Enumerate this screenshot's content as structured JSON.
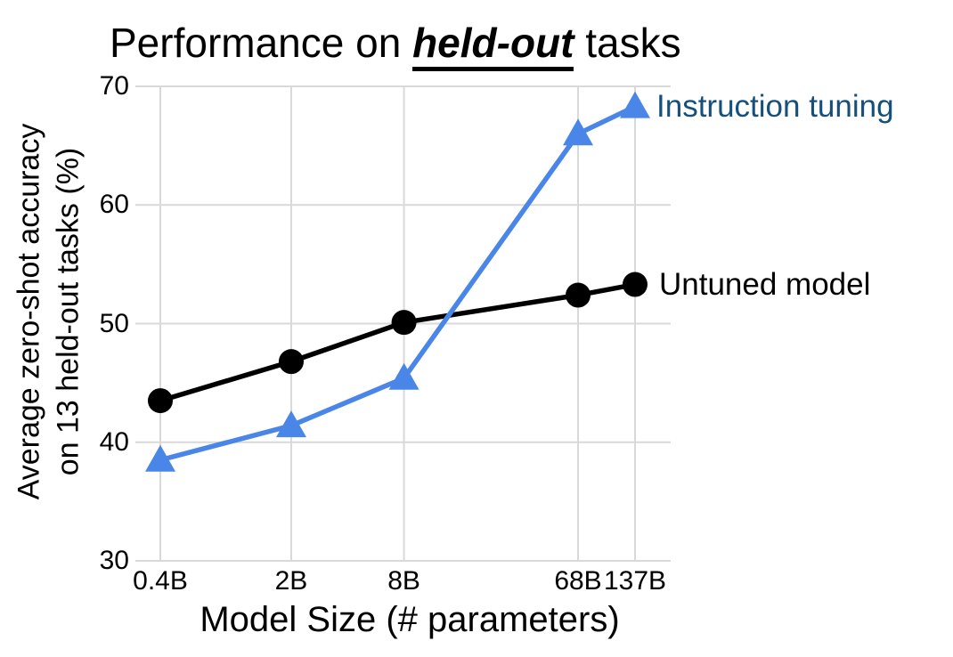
{
  "header": {
    "title_prefix": "Performance on ",
    "title_emphasis": "held-out",
    "title_suffix": " tasks"
  },
  "colors": {
    "background": "#ffffff",
    "grid": "#d9d9d9",
    "untuned_line": "#000000",
    "instruction_line": "#4a86e8",
    "instruction_label_text": "#15507d",
    "untuned_label_text": "#000000",
    "text": "#000000"
  },
  "chart_data": {
    "type": "line",
    "title": "Performance on held-out tasks",
    "title_emphasis_word": "held-out",
    "xlabel": "Model Size (# parameters)",
    "ylabel_line1": "Average zero-shot accuracy",
    "ylabel_line2": "on 13 held-out tasks (%)",
    "x_categories": [
      "0.4B",
      "2B",
      "8B",
      "68B",
      "137B"
    ],
    "x_params_billions": [
      0.4,
      2,
      8,
      68,
      137
    ],
    "x_scale": "log10",
    "ylim": [
      30,
      70
    ],
    "yticks": [
      30,
      40,
      50,
      60,
      70
    ],
    "grid": true,
    "legend_position": "end-of-line",
    "series": [
      {
        "name": "Untuned model",
        "marker": "circle",
        "color": "#000000",
        "label_color": "#000000",
        "label_gap": 27,
        "values": [
          43.5,
          46.8,
          50.1,
          52.4,
          53.3
        ]
      },
      {
        "name": "Instruction tuning",
        "marker": "triangle-up",
        "color": "#4a86e8",
        "label_color": "#15507d",
        "label_gap": 24,
        "values": [
          38.5,
          41.4,
          45.4,
          66.0,
          68.3
        ]
      }
    ]
  }
}
